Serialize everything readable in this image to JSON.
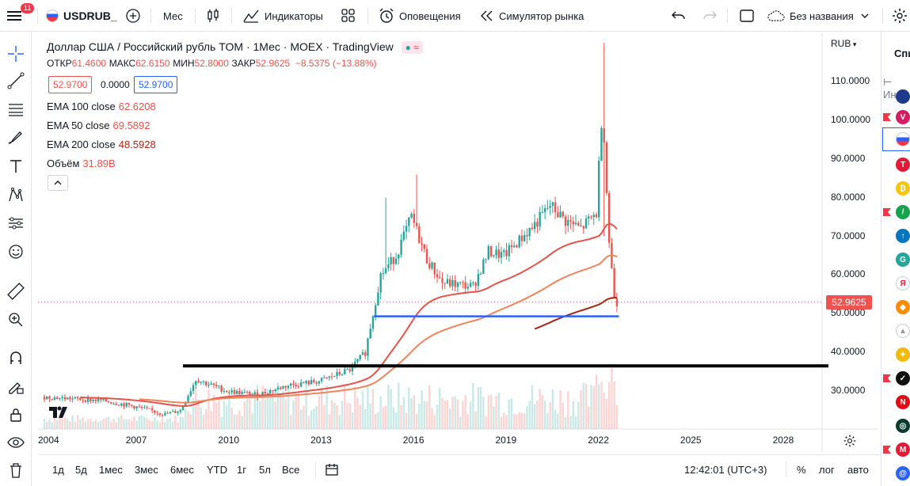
{
  "toolbar": {
    "menu_badge": "11",
    "symbol": "USDRUB_",
    "interval": "Мес",
    "indicators": "Индикаторы",
    "alerts": "Оповещения",
    "replay": "Симулятор рынка",
    "layout_name": "Без названия"
  },
  "legend": {
    "title": "Доллар США / Российский рубль TOM · 1Мес · MOEX · TradingView",
    "ohlc": {
      "o_label": "ОТКР",
      "o": "61.4600",
      "h_label": "МАКС",
      "h": "62.6150",
      "l_label": "МИН",
      "l": "52.8000",
      "c_label": "ЗАКР",
      "c": "52.9625",
      "chg": "−8.5375 (−13.88%)"
    },
    "bid": "52.9700",
    "spread": "0.0000",
    "ask": "52.9700",
    "indicators": [
      {
        "name": "EMA 100 close",
        "value": "62.6208",
        "color": "#e5534b"
      },
      {
        "name": "EMA 50 close",
        "value": "69.5892",
        "color": "#e5534b"
      },
      {
        "name": "EMA 200 close",
        "value": "48.5928",
        "color": "#e5534b"
      },
      {
        "name": "Объём",
        "value": "31.89B",
        "color": "#e5534b"
      }
    ]
  },
  "price_axis": {
    "currency": "RUB",
    "ticks": [
      "110.0000",
      "100.0000",
      "90.0000",
      "80.0000",
      "70.0000",
      "60.0000",
      "50.0000",
      "40.0000",
      "30.0000"
    ],
    "last_price": "52.9625"
  },
  "time_axis": {
    "ticks": [
      "2004",
      "2007",
      "2010",
      "2013",
      "2016",
      "2019",
      "2022",
      "2025",
      "2028"
    ]
  },
  "bottom": {
    "ranges": [
      "1д",
      "5д",
      "1мес",
      "3мес",
      "6мес",
      "YTD",
      "1г",
      "5л",
      "Все"
    ],
    "time": "12:42:01 (UTC+3)",
    "percent": "%",
    "log": "лог",
    "auto": "авто"
  },
  "colors": {
    "up": "#26a69a",
    "down": "#ef5350",
    "ema100": "#e5534b",
    "ema50": "#f0845a",
    "ema200": "#a52714",
    "accent": "#2962ff"
  },
  "chart_data": {
    "type": "line",
    "title": "Доллар США / Российский рубль TOM · 1Мес · MOEX · TradingView",
    "x": [
      2004,
      2005,
      2006,
      2007,
      2008,
      2008.5,
      2009,
      2010,
      2011,
      2012,
      2013,
      2014,
      2014.5,
      2015,
      2015.5,
      2016,
      2016.5,
      2017,
      2018,
      2018.5,
      2019,
      2020,
      2020.5,
      2021,
      2021.5,
      2022,
      2022.2,
      2022.4,
      2022.6
    ],
    "series": [
      {
        "name": "USDRUB",
        "values": [
          28.5,
          28.0,
          27.5,
          26.0,
          24.0,
          25.0,
          33.0,
          30.0,
          29.0,
          31.5,
          32.5,
          35.5,
          40.0,
          60.0,
          65.0,
          75.0,
          64.0,
          58.0,
          57.0,
          66.0,
          65.0,
          73.0,
          78.0,
          74.0,
          72.0,
          76.0,
          105.0,
          70.0,
          52.96
        ]
      }
    ],
    "ema": [
      {
        "name": "EMA 100 close",
        "value": 62.6208
      },
      {
        "name": "EMA 50 close",
        "value": 69.5892
      },
      {
        "name": "EMA 200 close",
        "value": 48.5928
      }
    ],
    "ylim": [
      20,
      120
    ],
    "xlim": [
      2004,
      2029
    ],
    "horizontal_lines": [
      36.5,
      49.3
    ]
  }
}
